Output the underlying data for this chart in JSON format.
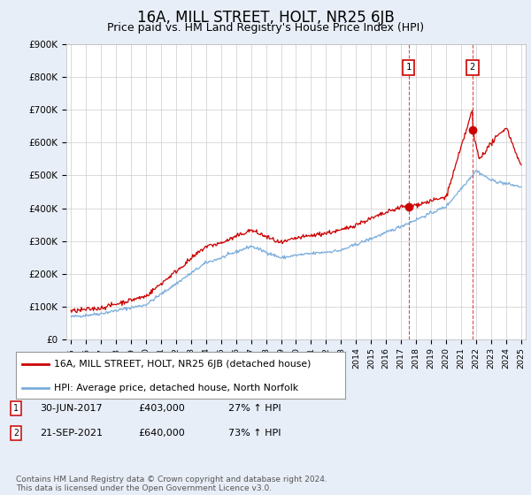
{
  "title": "16A, MILL STREET, HOLT, NR25 6JB",
  "subtitle": "Price paid vs. HM Land Registry's House Price Index (HPI)",
  "ylim": [
    0,
    900000
  ],
  "yticks": [
    0,
    100000,
    200000,
    300000,
    400000,
    500000,
    600000,
    700000,
    800000,
    900000
  ],
  "ytick_labels": [
    "£0",
    "£100K",
    "£200K",
    "£300K",
    "£400K",
    "£500K",
    "£600K",
    "£700K",
    "£800K",
    "£900K"
  ],
  "hpi_color": "#7aaddc",
  "price_color": "#cc0000",
  "marker_color": "#cc0000",
  "background_color": "#e8eef8",
  "plot_bg": "#ffffff",
  "grid_color": "#cccccc",
  "title_fontsize": 12,
  "subtitle_fontsize": 9,
  "sale1_year": 2017.5,
  "sale1_price": 403000,
  "sale2_year": 2021.75,
  "sale2_price": 640000,
  "legend_entries": [
    "16A, MILL STREET, HOLT, NR25 6JB (detached house)",
    "HPI: Average price, detached house, North Norfolk"
  ],
  "ann1_date": "30-JUN-2017",
  "ann1_price": "£403,000",
  "ann1_pct": "27% ↑ HPI",
  "ann2_date": "21-SEP-2021",
  "ann2_price": "£640,000",
  "ann2_pct": "73% ↑ HPI",
  "footer": "Contains HM Land Registry data © Crown copyright and database right 2024.\nThis data is licensed under the Open Government Licence v3.0."
}
